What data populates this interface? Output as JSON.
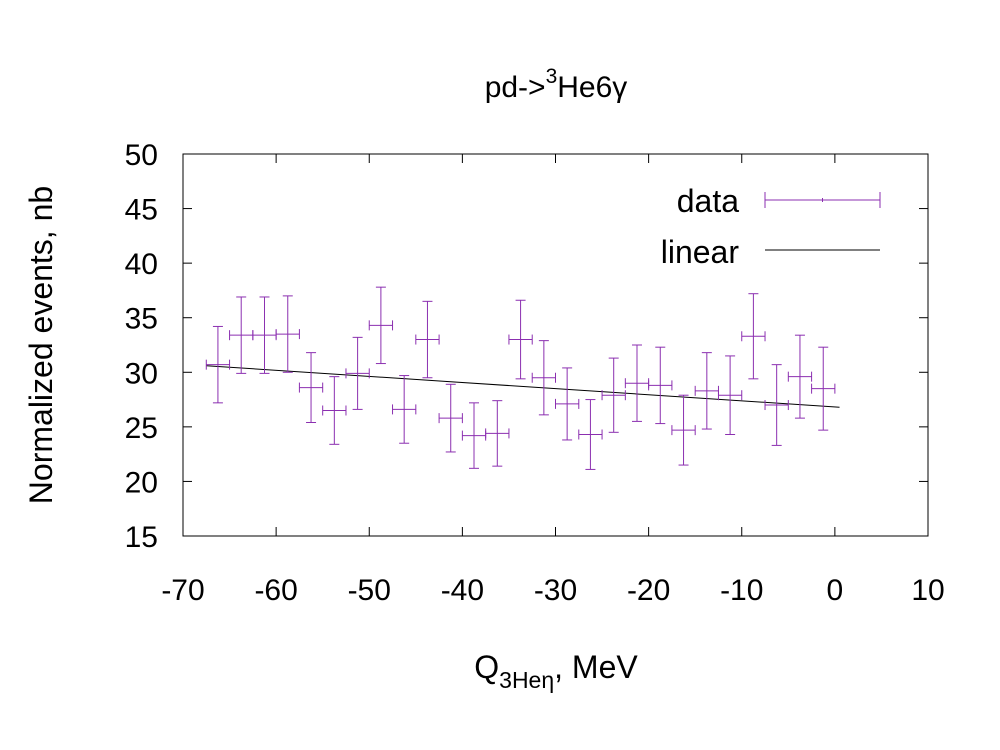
{
  "chart_data": {
    "type": "scatter",
    "title": {
      "prefix": "pd->",
      "sup": "3",
      "suffix": "He6γ"
    },
    "xlabel": {
      "main": "Q",
      "sub": "3Heη",
      "suffix": ", MeV"
    },
    "ylabel": "Normalized events, nb",
    "xlim": [
      -70,
      10
    ],
    "ylim": [
      15,
      50
    ],
    "xticks": [
      "-70",
      "-60",
      "-50",
      "-40",
      "-30",
      "-20",
      "-10",
      "0",
      "10"
    ],
    "yticks": [
      "15",
      "20",
      "25",
      "30",
      "35",
      "40",
      "45",
      "50"
    ],
    "legend_position": "top-right",
    "colors": {
      "data": "#8b2fb0",
      "fit": "#000000"
    },
    "series": [
      {
        "name": "data",
        "style": "errorbars",
        "x_halfwidth": 1.25,
        "points": [
          {
            "x": -66.25,
            "y": 30.7,
            "yerr": 3.5
          },
          {
            "x": -63.75,
            "y": 33.4,
            "yerr": 3.5
          },
          {
            "x": -61.25,
            "y": 33.4,
            "yerr": 3.5
          },
          {
            "x": -58.75,
            "y": 33.5,
            "yerr": 3.5
          },
          {
            "x": -56.25,
            "y": 28.6,
            "yerr": 3.2
          },
          {
            "x": -53.75,
            "y": 26.5,
            "yerr": 3.1
          },
          {
            "x": -51.25,
            "y": 29.9,
            "yerr": 3.3
          },
          {
            "x": -48.75,
            "y": 34.3,
            "yerr": 3.5
          },
          {
            "x": -46.25,
            "y": 26.6,
            "yerr": 3.1
          },
          {
            "x": -43.75,
            "y": 33.0,
            "yerr": 3.5
          },
          {
            "x": -41.25,
            "y": 25.8,
            "yerr": 3.1
          },
          {
            "x": -38.75,
            "y": 24.2,
            "yerr": 3.0
          },
          {
            "x": -36.25,
            "y": 24.4,
            "yerr": 3.0
          },
          {
            "x": -33.75,
            "y": 33.0,
            "yerr": 3.6
          },
          {
            "x": -31.25,
            "y": 29.5,
            "yerr": 3.4
          },
          {
            "x": -28.75,
            "y": 27.1,
            "yerr": 3.3
          },
          {
            "x": -26.25,
            "y": 24.3,
            "yerr": 3.2
          },
          {
            "x": -23.75,
            "y": 27.9,
            "yerr": 3.4
          },
          {
            "x": -21.25,
            "y": 29.0,
            "yerr": 3.5
          },
          {
            "x": -18.75,
            "y": 28.8,
            "yerr": 3.5
          },
          {
            "x": -16.25,
            "y": 24.7,
            "yerr": 3.2
          },
          {
            "x": -13.75,
            "y": 28.3,
            "yerr": 3.5
          },
          {
            "x": -11.25,
            "y": 27.9,
            "yerr": 3.6
          },
          {
            "x": -8.75,
            "y": 33.3,
            "yerr": 3.9
          },
          {
            "x": -6.25,
            "y": 27.0,
            "yerr": 3.7
          },
          {
            "x": -3.75,
            "y": 29.6,
            "yerr": 3.8
          },
          {
            "x": -1.25,
            "y": 28.5,
            "yerr": 3.8
          }
        ]
      },
      {
        "name": "linear",
        "style": "line",
        "x": [
          -67.5,
          0.5
        ],
        "y": [
          30.6,
          26.8
        ]
      }
    ]
  }
}
